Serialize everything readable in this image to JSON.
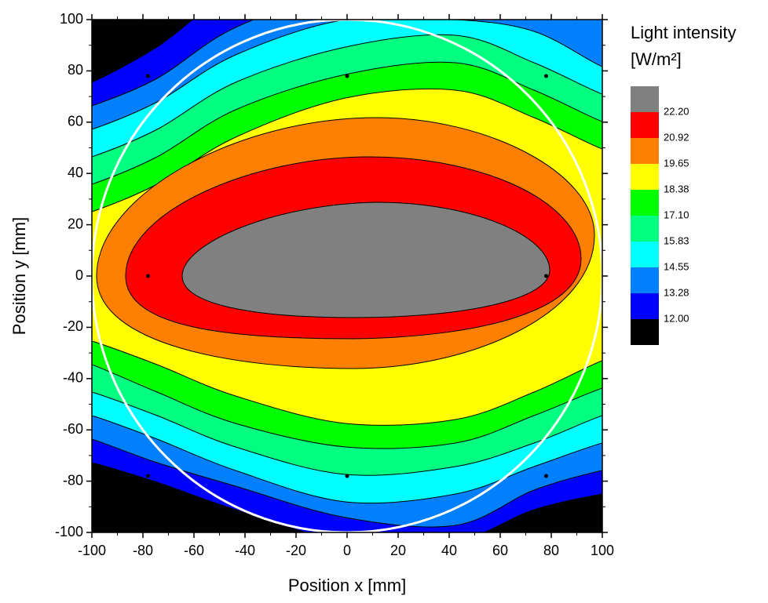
{
  "chart_data": {
    "type": "contour",
    "xlabel": "Position x [mm]",
    "ylabel": "Position y [mm]",
    "colorbar_title": [
      "Light intensity",
      "[W/m²]"
    ],
    "levels": [
      12,
      13.28,
      14.55,
      15.83,
      17.1,
      18.38,
      19.65,
      20.92,
      22.2
    ],
    "level_labels": [
      "12.00",
      "13.28",
      "14.55",
      "15.83",
      "17.10",
      "18.38",
      "19.65",
      "20.92",
      "22.20"
    ],
    "colors": [
      "#000000",
      "#0000ff",
      "#0080ff",
      "#00ffff",
      "#00ff80",
      "#00ff00",
      "#ffff00",
      "#ff8000",
      "#ff0000",
      "#808080"
    ],
    "points": {
      "x": [
        -78,
        0,
        78,
        -78,
        78,
        -78,
        0,
        78
      ],
      "y": [
        78,
        78,
        78,
        0,
        0,
        -78,
        -78,
        -78
      ]
    },
    "xlim": [
      -100,
      100
    ],
    "ylim": [
      -100,
      100
    ],
    "xticks": [
      -100,
      -80,
      -60,
      -40,
      -20,
      0,
      20,
      40,
      60,
      80,
      100
    ],
    "yticks": [
      -100,
      -80,
      -60,
      -40,
      -20,
      0,
      20,
      40,
      60,
      80,
      100
    ]
  }
}
